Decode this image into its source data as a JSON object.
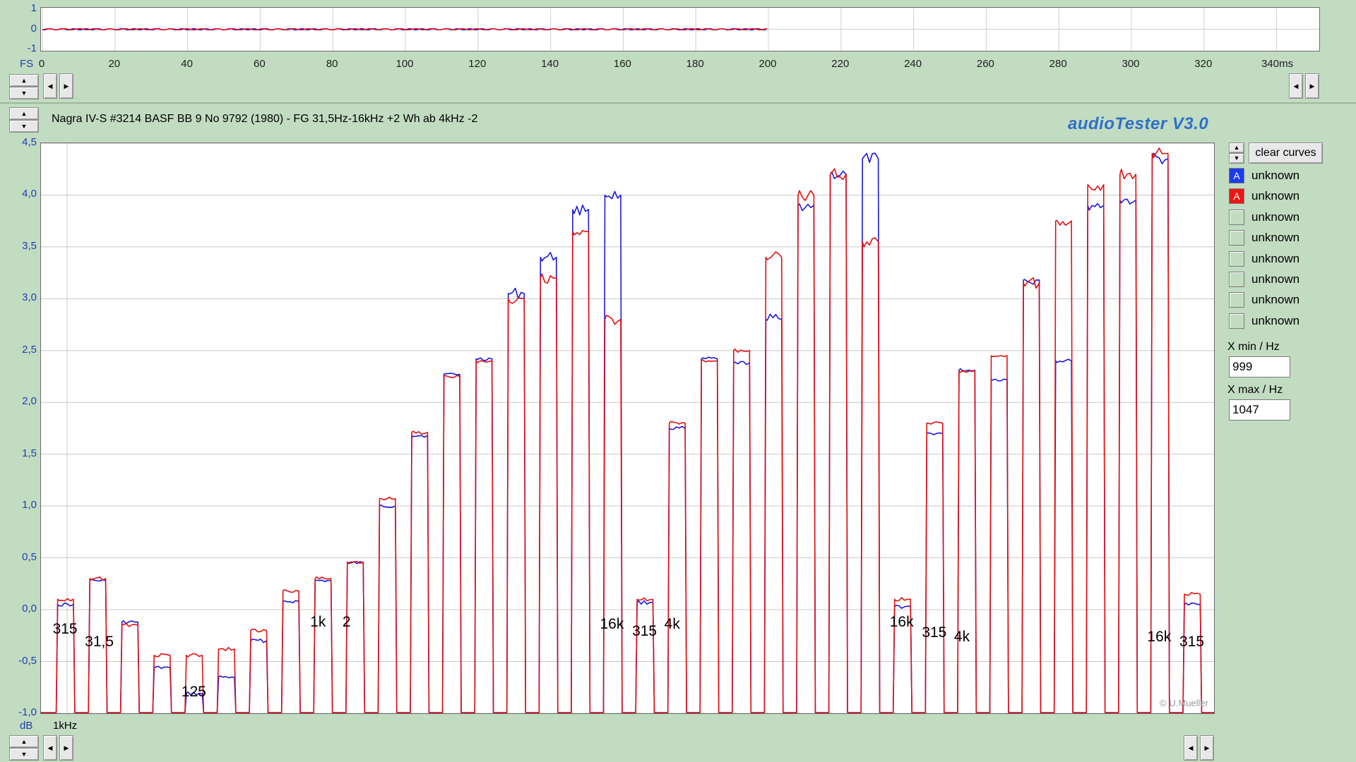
{
  "top_chart": {
    "y_ticks": [
      "1",
      "0",
      "-1"
    ],
    "fs_label": "FS",
    "x_ticks": [
      "0",
      "20",
      "40",
      "60",
      "80",
      "100",
      "120",
      "140",
      "160",
      "180",
      "200",
      "220",
      "240",
      "260",
      "280",
      "300",
      "320",
      "340ms"
    ]
  },
  "main": {
    "title": "Nagra IV-S #3214 BASF BB 9 No 9792 (1980) - FG 31,5Hz-16kHz +2 Wh ab 4kHz -2",
    "brand": "audioTester  V3.0",
    "y_unit": "dB",
    "x_label": "1kHz",
    "copyright": "© U.Mueller",
    "markers": [
      {
        "text": "315"
      },
      {
        "text": "31,5"
      },
      {
        "text": "125"
      },
      {
        "text": "1k"
      },
      {
        "text": "2"
      },
      {
        "text": "16k"
      },
      {
        "text": "315"
      },
      {
        "text": "4k"
      },
      {
        "text": "16k"
      },
      {
        "text": "315"
      },
      {
        "text": "4k"
      },
      {
        "text": "16k"
      },
      {
        "text": "315"
      }
    ]
  },
  "chart_data": {
    "type": "line",
    "xlabel": "1kHz",
    "ylabel": "dB",
    "ylim": [
      -1.0,
      4.5
    ],
    "y_ticks": [
      "4,5",
      "4,0",
      "3,5",
      "3,0",
      "2,5",
      "2,0",
      "1,5",
      "1,0",
      "0,5",
      "0,0",
      "-0,5",
      "-1,0"
    ],
    "series": [
      {
        "name": "A",
        "color": "#1a1adc",
        "values": [
          0.05,
          0.28,
          -0.12,
          -0.56,
          -0.81,
          -0.65,
          -0.3,
          0.08,
          0.28,
          0.45,
          1.0,
          1.68,
          2.27,
          2.42,
          3.05,
          3.4,
          3.86,
          4.0,
          0.07,
          1.75,
          2.42,
          2.38,
          2.8,
          3.9,
          4.2,
          4.35,
          0.03,
          1.7,
          2.31,
          2.22,
          3.18,
          2.4,
          3.9,
          3.95,
          4.35,
          0.05
        ]
      },
      {
        "name": "A",
        "color": "#e01010",
        "values": [
          0.1,
          0.3,
          -0.15,
          -0.44,
          -0.44,
          -0.38,
          -0.2,
          0.18,
          0.3,
          0.46,
          1.07,
          1.71,
          2.25,
          2.4,
          3.0,
          3.2,
          3.65,
          2.8,
          0.1,
          1.8,
          2.4,
          2.5,
          3.4,
          4.0,
          4.2,
          3.55,
          0.1,
          1.8,
          2.3,
          2.45,
          3.15,
          3.75,
          4.1,
          4.2,
          4.4,
          0.15
        ]
      }
    ]
  },
  "toolbar": {
    "clear_label": "clear curves"
  },
  "legend": [
    {
      "text": "unknown",
      "mark": "A",
      "color": "#1a3cf0"
    },
    {
      "text": "unknown",
      "mark": "A",
      "color": "#ee1515"
    },
    {
      "text": "unknown",
      "mark": "",
      "color": ""
    },
    {
      "text": "unknown",
      "mark": "",
      "color": ""
    },
    {
      "text": "unknown",
      "mark": "",
      "color": ""
    },
    {
      "text": "unknown",
      "mark": "",
      "color": ""
    },
    {
      "text": "unknown",
      "mark": "",
      "color": ""
    },
    {
      "text": "unknown",
      "mark": "",
      "color": ""
    }
  ],
  "xmin": {
    "label": "X min / Hz",
    "value": "999"
  },
  "xmax": {
    "label": "X max / Hz",
    "value": "1047"
  }
}
